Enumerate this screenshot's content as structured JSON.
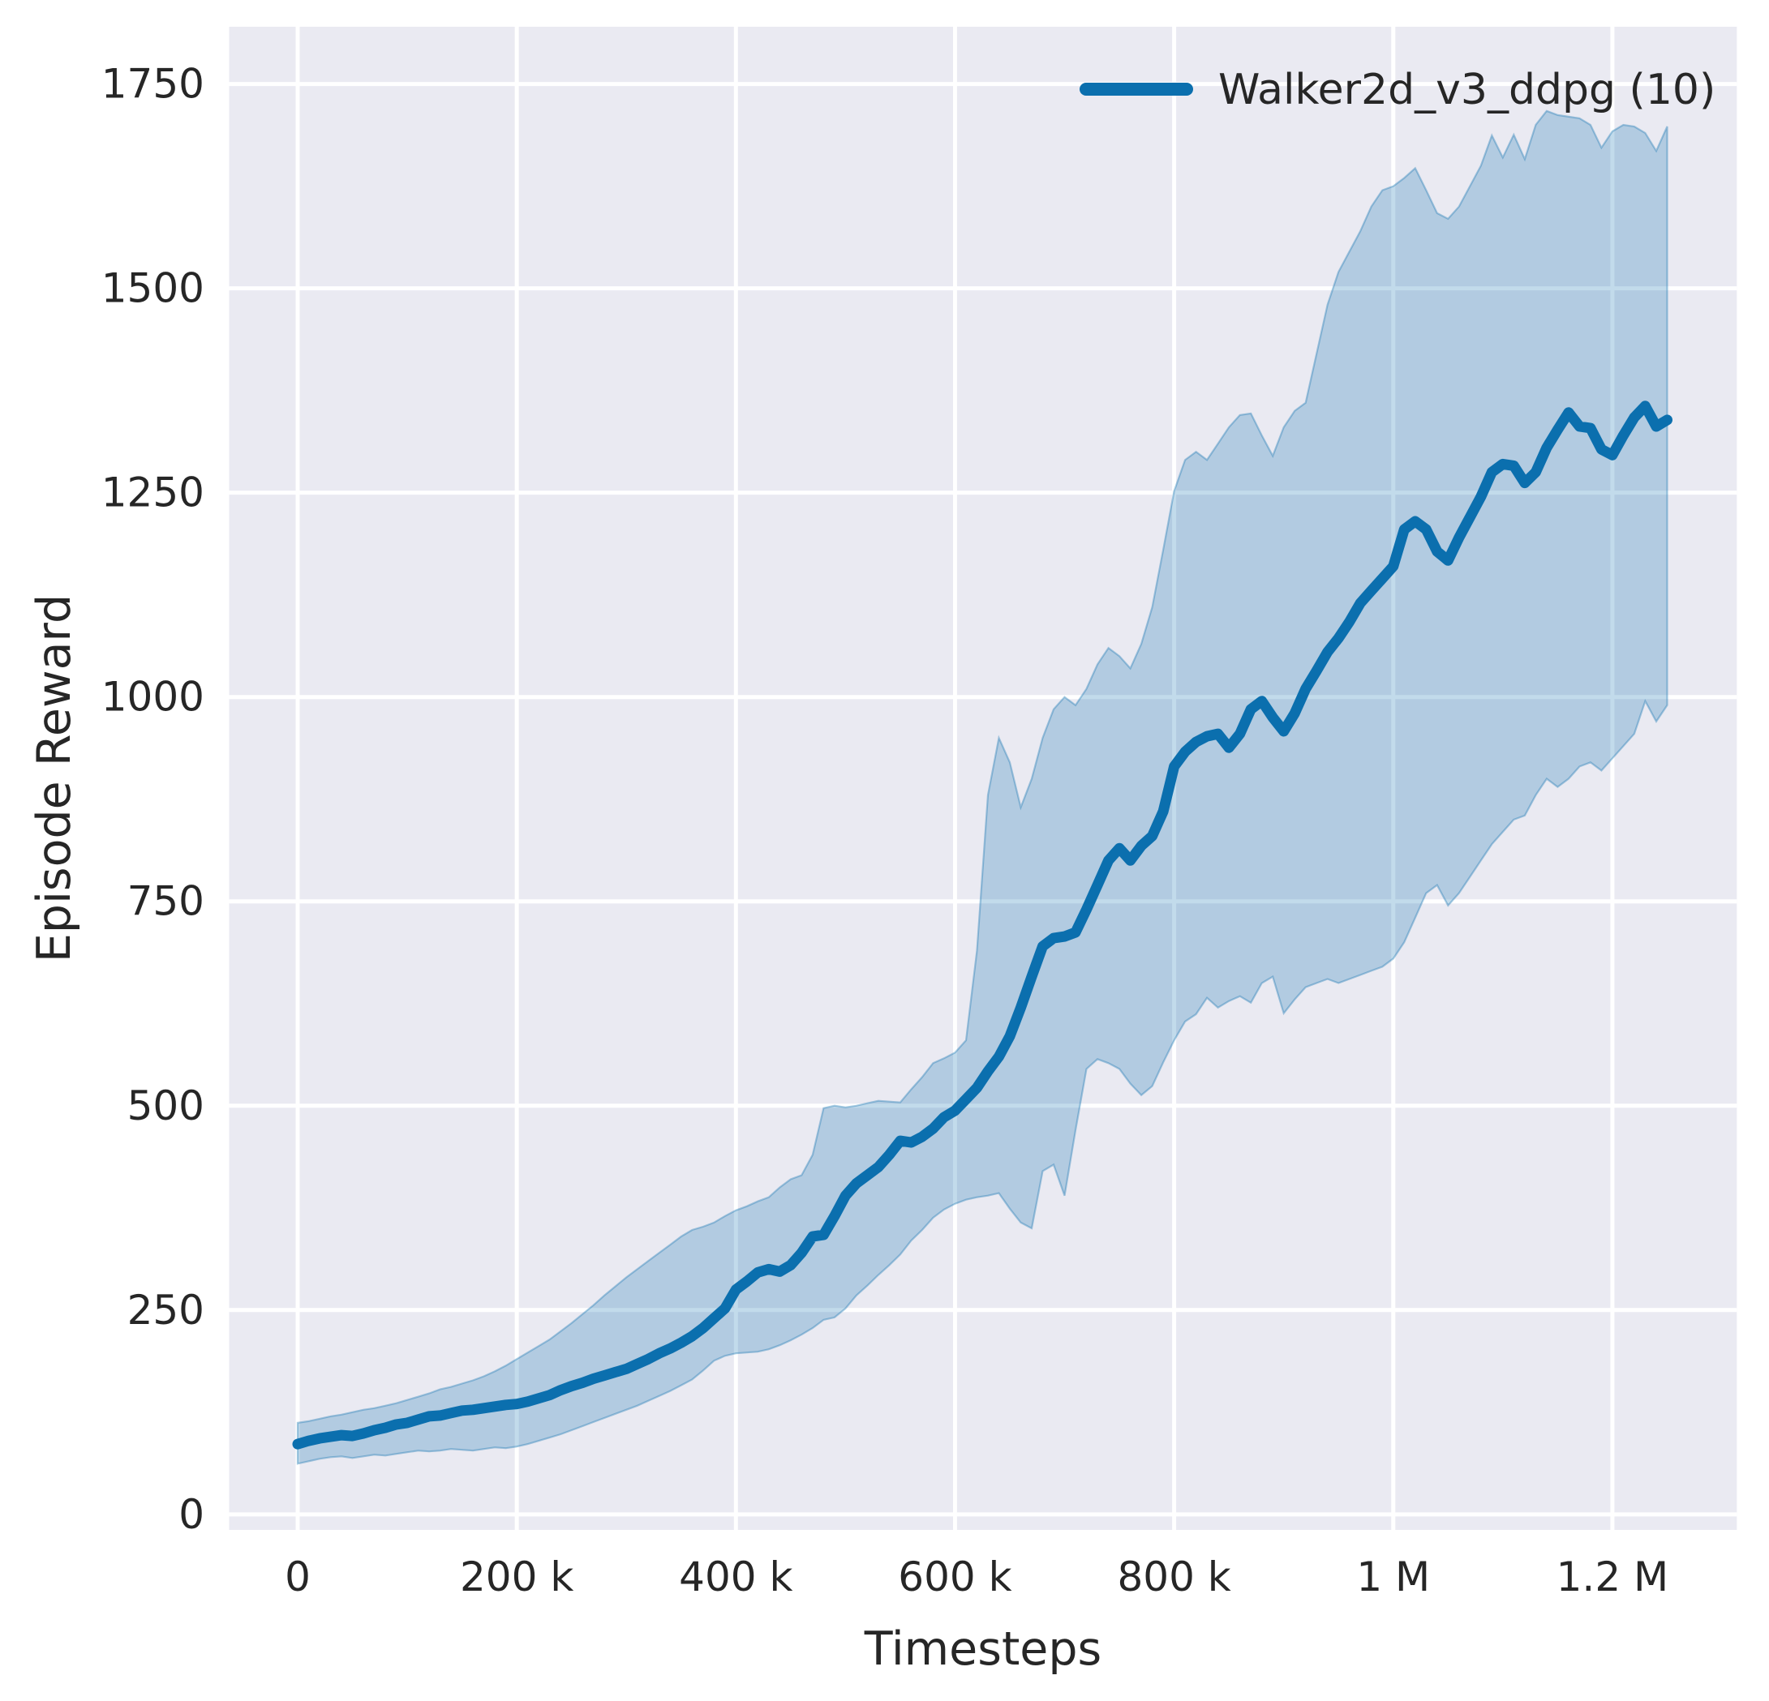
{
  "chart_data": {
    "type": "line",
    "title": "",
    "xlabel": "Timesteps",
    "ylabel": "Episode Reward",
    "legend": {
      "label": "Walker2d_v3_ddpg (10)",
      "position": "upper right",
      "frame": false
    },
    "axes": {
      "xlim": [
        -62550,
        1313550
      ],
      "ylim": [
        -19,
        1820
      ],
      "grid": true,
      "background": "#eaeaf2",
      "gridline_color": "#ffffff",
      "xticks": {
        "values": [
          0,
          200000,
          400000,
          600000,
          800000,
          1000000,
          1200000
        ],
        "labels": [
          "0",
          "200 k",
          "400 k",
          "600 k",
          "800 k",
          "1 M",
          "1.2 M"
        ]
      },
      "yticks": {
        "values": [
          0,
          250,
          500,
          750,
          1000,
          1250,
          1500,
          1750
        ],
        "labels": [
          "0",
          "250",
          "500",
          "750",
          "1000",
          "1250",
          "1500",
          "1750"
        ]
      }
    },
    "style": {
      "line_color": "#0b6fae",
      "line_width": 13,
      "band_opacity": 0.25,
      "band_edge_opacity": 0.35,
      "text_color": "#262626"
    },
    "series": [
      {
        "name": "Walker2d_v3_ddpg (10)",
        "color": "#0b6fae",
        "x_start": 0,
        "x_step": 10000,
        "x_end": 1250000,
        "mean": [
          86,
          90,
          93,
          95,
          97,
          96,
          99,
          103,
          106,
          110,
          112,
          116,
          120,
          121,
          124,
          127,
          128,
          130,
          132,
          134,
          135,
          138,
          142,
          146,
          152,
          157,
          161,
          166,
          170,
          174,
          178,
          184,
          190,
          197,
          203,
          210,
          218,
          228,
          240,
          252,
          275,
          285,
          296,
          300,
          297,
          305,
          320,
          340,
          342,
          365,
          390,
          405,
          415,
          425,
          440,
          457,
          455,
          462,
          472,
          486,
          494,
          508,
          522,
          542,
          560,
          585,
          620,
          658,
          695,
          705,
          707,
          712,
          740,
          770,
          800,
          815,
          800,
          818,
          830,
          860,
          915,
          933,
          945,
          952,
          955,
          938,
          955,
          985,
          995,
          975,
          958,
          980,
          1010,
          1032,
          1055,
          1072,
          1092,
          1115,
          1130,
          1145,
          1160,
          1205,
          1215,
          1205,
          1178,
          1167,
          1195,
          1220,
          1245,
          1275,
          1285,
          1283,
          1262,
          1275,
          1305,
          1327,
          1348,
          1331,
          1329,
          1303,
          1296,
          1320,
          1342,
          1356,
          1331,
          1339
        ],
        "band_lower": [
          62,
          65,
          68,
          70,
          71,
          69,
          71,
          73,
          72,
          74,
          76,
          78,
          77,
          78,
          80,
          79,
          78,
          80,
          82,
          81,
          83,
          86,
          90,
          94,
          98,
          103,
          108,
          113,
          118,
          123,
          128,
          133,
          139,
          145,
          151,
          158,
          165,
          176,
          188,
          194,
          197,
          198,
          199,
          202,
          207,
          213,
          220,
          228,
          238,
          241,
          252,
          268,
          280,
          293,
          305,
          318,
          335,
          348,
          363,
          373,
          380,
          385,
          388,
          390,
          393,
          374,
          357,
          350,
          420,
          428,
          390,
          470,
          545,
          557,
          552,
          545,
          527,
          513,
          524,
          553,
          580,
          603,
          612,
          632,
          620,
          628,
          634,
          626,
          650,
          658,
          613,
          630,
          645,
          650,
          655,
          650,
          655,
          660,
          665,
          670,
          680,
          700,
          730,
          760,
          770,
          745,
          760,
          780,
          800,
          820,
          835,
          850,
          855,
          880,
          900,
          890,
          900,
          915,
          920,
          910,
          925,
          940,
          955,
          995,
          970,
          990
        ],
        "band_upper": [
          112,
          114,
          117,
          120,
          122,
          125,
          128,
          130,
          133,
          136,
          140,
          144,
          148,
          153,
          156,
          160,
          164,
          169,
          175,
          182,
          190,
          198,
          206,
          214,
          224,
          234,
          245,
          256,
          268,
          279,
          290,
          300,
          310,
          320,
          330,
          340,
          348,
          352,
          357,
          365,
          372,
          377,
          383,
          388,
          400,
          410,
          415,
          440,
          497,
          500,
          498,
          500,
          503,
          506,
          505,
          504,
          520,
          535,
          552,
          558,
          565,
          580,
          690,
          880,
          950,
          920,
          865,
          900,
          950,
          985,
          1000,
          990,
          1010,
          1040,
          1060,
          1050,
          1035,
          1065,
          1110,
          1180,
          1252,
          1290,
          1300,
          1290,
          1310,
          1330,
          1345,
          1347,
          1320,
          1295,
          1330,
          1350,
          1360,
          1420,
          1480,
          1520,
          1545,
          1570,
          1600,
          1620,
          1625,
          1635,
          1647,
          1620,
          1592,
          1585,
          1600,
          1625,
          1650,
          1687,
          1660,
          1688,
          1658,
          1700,
          1717,
          1712,
          1710,
          1708,
          1700,
          1672,
          1692,
          1700,
          1698,
          1690,
          1668,
          1698
        ]
      }
    ]
  }
}
